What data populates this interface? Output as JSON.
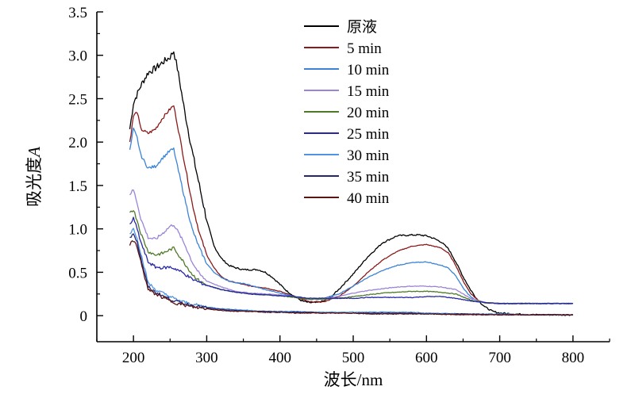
{
  "chart_data": {
    "type": "line",
    "title": "",
    "xlabel": "波长/nm",
    "ylabel": "吸光度A",
    "ylabel_parts": [
      "吸光度",
      "A"
    ],
    "xlim": [
      150,
      850
    ],
    "ylim": [
      -0.3,
      3.5
    ],
    "xticks": [
      200,
      300,
      400,
      500,
      600,
      700,
      800
    ],
    "yticks": [
      0,
      0.5,
      1.0,
      1.5,
      2.0,
      2.5,
      3.0,
      3.5
    ],
    "xtick_labels": [
      "200",
      "300",
      "400",
      "500",
      "600",
      "700",
      "800"
    ],
    "ytick_labels": [
      "0",
      "0.5",
      "1.0",
      "1.5",
      "2.0",
      "2.5",
      "3.0",
      "3.5"
    ],
    "legend": "top-center",
    "series": [
      {
        "name": "原液",
        "color": "#000000",
        "x": [
          195,
          200,
          210,
          220,
          230,
          240,
          250,
          255,
          260,
          270,
          280,
          290,
          300,
          310,
          320,
          330,
          340,
          350,
          360,
          370,
          380,
          390,
          400,
          410,
          420,
          430,
          440,
          450,
          460,
          470,
          480,
          500,
          520,
          540,
          560,
          580,
          590,
          600,
          610,
          620,
          630,
          640,
          650,
          660,
          670,
          680,
          690,
          700,
          720,
          750,
          800
        ],
        "y": [
          2.15,
          2.45,
          2.65,
          2.8,
          2.85,
          2.92,
          2.98,
          3.05,
          2.85,
          2.35,
          1.9,
          1.5,
          1.1,
          0.8,
          0.66,
          0.58,
          0.55,
          0.53,
          0.53,
          0.53,
          0.5,
          0.44,
          0.36,
          0.28,
          0.22,
          0.17,
          0.15,
          0.15,
          0.17,
          0.22,
          0.3,
          0.48,
          0.68,
          0.84,
          0.92,
          0.93,
          0.93,
          0.92,
          0.89,
          0.85,
          0.77,
          0.62,
          0.45,
          0.3,
          0.18,
          0.1,
          0.05,
          0.03,
          0.02,
          0.01,
          0.01
        ]
      },
      {
        "name": "5 min",
        "color": "#8b1a1a",
        "x": [
          195,
          200,
          205,
          210,
          220,
          230,
          240,
          250,
          255,
          260,
          270,
          280,
          290,
          300,
          310,
          320,
          330,
          340,
          350,
          360,
          380,
          400,
          420,
          440,
          460,
          480,
          500,
          520,
          540,
          560,
          580,
          600,
          610,
          620,
          630,
          640,
          650,
          660,
          670,
          680,
          700,
          720,
          750,
          800
        ],
        "y": [
          2.0,
          2.3,
          2.35,
          2.15,
          2.1,
          2.15,
          2.28,
          2.38,
          2.42,
          2.2,
          1.75,
          1.3,
          0.95,
          0.7,
          0.55,
          0.45,
          0.4,
          0.38,
          0.36,
          0.34,
          0.32,
          0.28,
          0.22,
          0.16,
          0.16,
          0.22,
          0.34,
          0.5,
          0.64,
          0.74,
          0.8,
          0.82,
          0.8,
          0.78,
          0.72,
          0.58,
          0.4,
          0.26,
          0.18,
          0.15,
          0.14,
          0.14,
          0.14,
          0.14
        ]
      },
      {
        "name": "10 min",
        "color": "#3a84d8",
        "x": [
          195,
          200,
          205,
          210,
          220,
          230,
          240,
          250,
          255,
          260,
          270,
          280,
          290,
          300,
          310,
          320,
          330,
          340,
          350,
          360,
          380,
          400,
          420,
          440,
          460,
          480,
          500,
          520,
          540,
          560,
          580,
          600,
          610,
          620,
          630,
          640,
          650,
          660,
          670,
          680,
          700,
          720,
          750,
          800
        ],
        "y": [
          1.9,
          2.15,
          2.05,
          1.85,
          1.7,
          1.72,
          1.82,
          1.9,
          1.92,
          1.72,
          1.35,
          1.0,
          0.78,
          0.6,
          0.5,
          0.44,
          0.4,
          0.38,
          0.37,
          0.35,
          0.3,
          0.26,
          0.22,
          0.19,
          0.2,
          0.25,
          0.34,
          0.44,
          0.52,
          0.58,
          0.61,
          0.62,
          0.6,
          0.58,
          0.55,
          0.46,
          0.32,
          0.22,
          0.17,
          0.15,
          0.14,
          0.14,
          0.14,
          0.14
        ]
      },
      {
        "name": "15 min",
        "color": "#9a84d8",
        "x": [
          195,
          200,
          205,
          210,
          220,
          230,
          240,
          250,
          255,
          260,
          270,
          280,
          290,
          300,
          320,
          340,
          360,
          380,
          400,
          420,
          440,
          460,
          480,
          500,
          520,
          540,
          560,
          580,
          600,
          620,
          640,
          660,
          680,
          700,
          750,
          800
        ],
        "y": [
          1.4,
          1.45,
          1.3,
          1.12,
          0.9,
          0.88,
          0.95,
          1.03,
          1.05,
          0.98,
          0.82,
          0.62,
          0.48,
          0.4,
          0.33,
          0.28,
          0.26,
          0.25,
          0.24,
          0.22,
          0.2,
          0.2,
          0.22,
          0.26,
          0.29,
          0.31,
          0.33,
          0.34,
          0.34,
          0.33,
          0.3,
          0.2,
          0.15,
          0.14,
          0.14,
          0.14
        ]
      },
      {
        "name": "20 min",
        "color": "#4e7a28",
        "x": [
          195,
          200,
          205,
          210,
          220,
          230,
          240,
          250,
          255,
          260,
          270,
          280,
          290,
          300,
          320,
          340,
          360,
          380,
          400,
          420,
          440,
          460,
          480,
          500,
          520,
          540,
          560,
          580,
          600,
          620,
          640,
          660,
          680,
          700,
          750,
          800
        ],
        "y": [
          1.2,
          1.22,
          1.1,
          0.95,
          0.74,
          0.7,
          0.72,
          0.76,
          0.78,
          0.72,
          0.6,
          0.48,
          0.4,
          0.35,
          0.3,
          0.27,
          0.25,
          0.24,
          0.23,
          0.21,
          0.19,
          0.19,
          0.2,
          0.22,
          0.24,
          0.26,
          0.27,
          0.28,
          0.28,
          0.27,
          0.25,
          0.18,
          0.15,
          0.14,
          0.14,
          0.14
        ]
      },
      {
        "name": "25 min",
        "color": "#2727a8",
        "x": [
          195,
          200,
          205,
          210,
          220,
          230,
          240,
          250,
          260,
          270,
          280,
          300,
          320,
          340,
          360,
          380,
          400,
          420,
          440,
          460,
          480,
          500,
          520,
          540,
          560,
          580,
          600,
          620,
          640,
          660,
          680,
          700,
          750,
          800
        ],
        "y": [
          1.05,
          1.12,
          1.0,
          0.85,
          0.62,
          0.56,
          0.55,
          0.56,
          0.53,
          0.48,
          0.42,
          0.35,
          0.3,
          0.27,
          0.25,
          0.24,
          0.23,
          0.22,
          0.2,
          0.2,
          0.2,
          0.2,
          0.21,
          0.21,
          0.21,
          0.21,
          0.22,
          0.22,
          0.2,
          0.17,
          0.15,
          0.14,
          0.14,
          0.14
        ]
      },
      {
        "name": "30 min",
        "color": "#4d95e3",
        "x": [
          195,
          200,
          205,
          210,
          220,
          230,
          240,
          250,
          260,
          280,
          300,
          320,
          340,
          360,
          380,
          400,
          420,
          440,
          460,
          480,
          500,
          520,
          540,
          560,
          580,
          600,
          650,
          700,
          750,
          800
        ],
        "y": [
          0.95,
          1.0,
          0.9,
          0.72,
          0.38,
          0.3,
          0.26,
          0.22,
          0.18,
          0.13,
          0.1,
          0.08,
          0.07,
          0.06,
          0.05,
          0.05,
          0.05,
          0.04,
          0.04,
          0.04,
          0.04,
          0.04,
          0.04,
          0.04,
          0.04,
          0.03,
          0.02,
          0.02,
          0.01,
          0.01
        ]
      },
      {
        "name": "35 min",
        "color": "#262670",
        "x": [
          195,
          200,
          205,
          210,
          220,
          230,
          240,
          250,
          260,
          280,
          300,
          320,
          340,
          360,
          380,
          400,
          420,
          440,
          460,
          480,
          500,
          520,
          540,
          560,
          580,
          600,
          650,
          700,
          750,
          800
        ],
        "y": [
          0.9,
          0.95,
          0.85,
          0.66,
          0.33,
          0.27,
          0.23,
          0.19,
          0.16,
          0.12,
          0.09,
          0.07,
          0.06,
          0.05,
          0.05,
          0.04,
          0.04,
          0.04,
          0.03,
          0.03,
          0.03,
          0.03,
          0.03,
          0.03,
          0.03,
          0.02,
          0.02,
          0.01,
          0.01,
          0.01
        ]
      },
      {
        "name": "40 min",
        "color": "#5a1414",
        "x": [
          195,
          200,
          205,
          210,
          220,
          230,
          240,
          250,
          260,
          280,
          300,
          320,
          340,
          360,
          380,
          400,
          420,
          440,
          460,
          480,
          500,
          520,
          540,
          560,
          580,
          600,
          650,
          700,
          750,
          800
        ],
        "y": [
          0.82,
          0.86,
          0.8,
          0.62,
          0.3,
          0.25,
          0.21,
          0.17,
          0.14,
          0.1,
          0.08,
          0.06,
          0.05,
          0.05,
          0.04,
          0.04,
          0.03,
          0.03,
          0.03,
          0.03,
          0.03,
          0.02,
          0.02,
          0.02,
          0.02,
          0.02,
          0.01,
          0.01,
          0.01,
          0.01
        ]
      }
    ]
  }
}
